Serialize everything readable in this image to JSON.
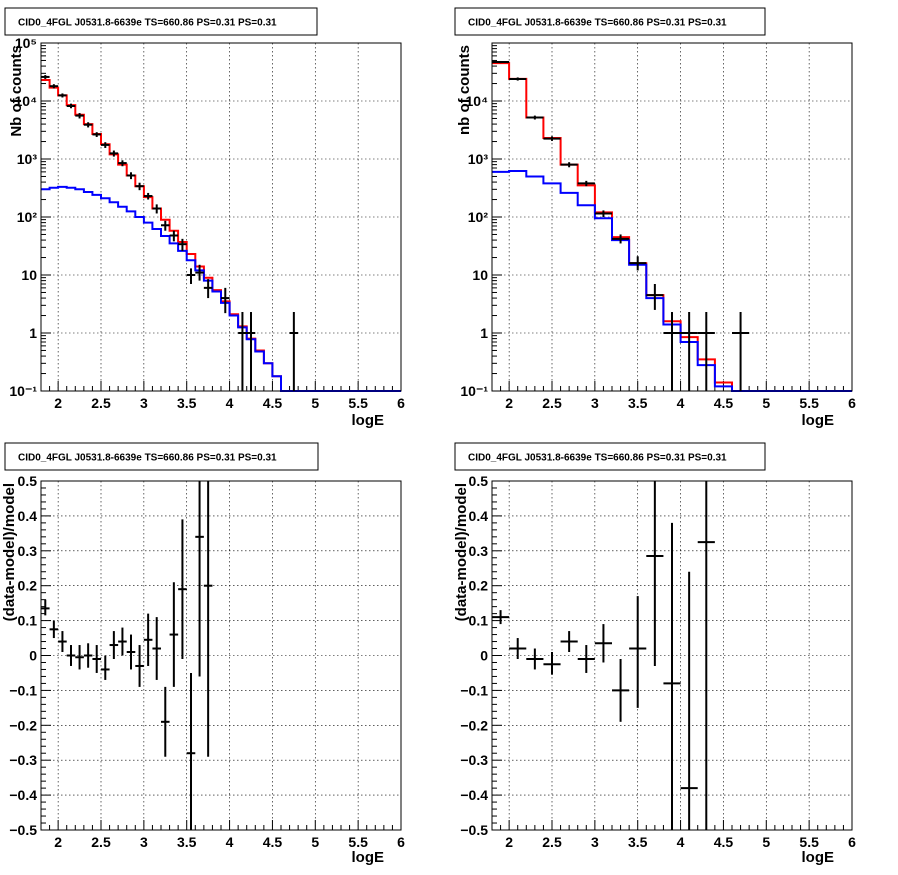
{
  "colors": {
    "data": "#000000",
    "total_model": "#ff0000",
    "component": "#0000ff"
  },
  "chart_data": [
    {
      "id": "counts-left",
      "type": "histogram-logy",
      "title": "CID0_4FGL J0531.8-6639e TS=660.86 PS=0.31 PS=0.31",
      "xlabel": "logE",
      "ylabel": "Nb of counts",
      "xlim": [
        1.8,
        6.0
      ],
      "ylim": [
        0.1,
        100000
      ],
      "log_y": true,
      "grid": true,
      "xticks": [
        2,
        2.5,
        3,
        3.5,
        4,
        4.5,
        5,
        5.5,
        6
      ],
      "xtick_labels": [
        "2",
        "2.5",
        "3",
        "3.5",
        "4",
        "4.5",
        "5",
        "5.5",
        "6"
      ],
      "yticks": [
        0.1,
        1,
        10,
        100,
        1000,
        10000,
        100000
      ],
      "ytick_labels": [
        "10⁻¹",
        "1",
        "10",
        "10²",
        "10³",
        "10⁴",
        "10⁵"
      ],
      "bin_edges": [
        1.8,
        1.9,
        2.0,
        2.1,
        2.2,
        2.3,
        2.4,
        2.5,
        2.6,
        2.7,
        2.8,
        2.9,
        3.0,
        3.1,
        3.2,
        3.3,
        3.4,
        3.5,
        3.6,
        3.7,
        3.8,
        3.9,
        4.0,
        4.1,
        4.2,
        4.3,
        4.4,
        4.5,
        4.6,
        4.7,
        4.8,
        4.9,
        5.0,
        5.1,
        5.2,
        5.3,
        5.4,
        5.5,
        5.6,
        5.7,
        5.8,
        5.9,
        6.0
      ],
      "series": [
        {
          "role": "total_model",
          "values": [
            23000,
            17000,
            12500,
            8500,
            5800,
            4000,
            2700,
            1800,
            1200,
            800,
            520,
            340,
            220,
            140,
            90,
            58,
            37,
            23,
            14,
            9,
            5.5,
            3.5,
            2.1,
            1.3,
            0.8,
            0.5,
            0.3,
            0.18,
            0.1,
            0.1,
            0.1,
            0.1,
            0.1,
            0.1,
            0.1,
            0.1,
            0.1,
            0.1,
            0.1,
            0.1,
            0.1,
            0.1
          ]
        },
        {
          "role": "component",
          "values": [
            300,
            320,
            330,
            320,
            300,
            270,
            240,
            210,
            180,
            150,
            125,
            100,
            80,
            62,
            47,
            35,
            26,
            18,
            12,
            8,
            5.2,
            3.3,
            2.0,
            1.25,
            0.78,
            0.48,
            0.3,
            0.18,
            0.1,
            0.1,
            0.1,
            0.1,
            0.1,
            0.1,
            0.1,
            0.1,
            0.1,
            0.1,
            0.1,
            0.1,
            0.1,
            0.1
          ]
        },
        {
          "role": "data",
          "points": [
            {
              "x": 1.85,
              "y": 26000,
              "lo": 24000,
              "hi": 28000
            },
            {
              "x": 1.95,
              "y": 18000,
              "lo": 16500,
              "hi": 19500
            },
            {
              "x": 2.05,
              "y": 12500,
              "lo": 11500,
              "hi": 13500
            },
            {
              "x": 2.15,
              "y": 8200,
              "lo": 7500,
              "hi": 9000
            },
            {
              "x": 2.25,
              "y": 5600,
              "lo": 5000,
              "hi": 6200
            },
            {
              "x": 2.35,
              "y": 3900,
              "lo": 3500,
              "hi": 4300
            },
            {
              "x": 2.45,
              "y": 2650,
              "lo": 2400,
              "hi": 2900
            },
            {
              "x": 2.55,
              "y": 1750,
              "lo": 1550,
              "hi": 1950
            },
            {
              "x": 2.65,
              "y": 1250,
              "lo": 1100,
              "hi": 1400
            },
            {
              "x": 2.75,
              "y": 850,
              "lo": 750,
              "hi": 950
            },
            {
              "x": 2.85,
              "y": 520,
              "lo": 450,
              "hi": 590
            },
            {
              "x": 2.95,
              "y": 340,
              "lo": 290,
              "hi": 390
            },
            {
              "x": 3.05,
              "y": 230,
              "lo": 200,
              "hi": 260
            },
            {
              "x": 3.15,
              "y": 140,
              "lo": 115,
              "hi": 165
            },
            {
              "x": 3.25,
              "y": 72,
              "lo": 58,
              "hi": 86
            },
            {
              "x": 3.35,
              "y": 48,
              "lo": 38,
              "hi": 58
            },
            {
              "x": 3.45,
              "y": 34,
              "lo": 26,
              "hi": 42
            },
            {
              "x": 3.55,
              "y": 10,
              "lo": 7,
              "hi": 13
            },
            {
              "x": 3.65,
              "y": 11,
              "lo": 8,
              "hi": 15
            },
            {
              "x": 3.75,
              "y": 6,
              "lo": 4,
              "hi": 8.5
            },
            {
              "x": 3.95,
              "y": 4,
              "lo": 2.2,
              "hi": 6
            },
            {
              "x": 4.15,
              "y": 1,
              "lo": 0.1,
              "hi": 2.3
            },
            {
              "x": 4.25,
              "y": 1,
              "lo": 0.1,
              "hi": 2.3
            },
            {
              "x": 4.75,
              "y": 1,
              "lo": 0.1,
              "hi": 2.3
            }
          ]
        }
      ]
    },
    {
      "id": "counts-right",
      "type": "histogram-logy",
      "title": "CID0_4FGL J0531.8-6639e TS=660.86 PS=0.31 PS=0.31",
      "xlabel": "logE",
      "ylabel": "nb of counts",
      "xlim": [
        1.8,
        6.0
      ],
      "ylim": [
        0.1,
        100000
      ],
      "log_y": true,
      "grid": true,
      "xticks": [
        2,
        2.5,
        3,
        3.5,
        4,
        4.5,
        5,
        5.5,
        6
      ],
      "xtick_labels": [
        "2",
        "2.5",
        "3",
        "3.5",
        "4",
        "4.5",
        "5",
        "5.5",
        "6"
      ],
      "yticks": [
        0.1,
        1,
        10,
        100,
        1000,
        10000
      ],
      "ytick_labels": [
        "10⁻¹",
        "1",
        "10",
        "10²",
        "10³",
        "10⁴"
      ],
      "bin_edges": [
        1.8,
        2.0,
        2.2,
        2.4,
        2.6,
        2.8,
        3.0,
        3.2,
        3.4,
        3.6,
        3.8,
        4.0,
        4.2,
        4.4,
        4.6,
        4.8,
        5.0,
        5.2,
        5.4,
        5.6,
        5.8,
        6.0
      ],
      "series": [
        {
          "role": "total_model",
          "values": [
            45000,
            24000,
            5200,
            2300,
            800,
            350,
            120,
            45,
            16,
            4.5,
            1.6,
            0.85,
            0.35,
            0.14,
            0.1,
            0.1,
            0.1,
            0.1,
            0.1,
            0.1,
            0.1
          ]
        },
        {
          "role": "component",
          "values": [
            600,
            620,
            500,
            380,
            260,
            160,
            95,
            40,
            15,
            4,
            1.4,
            0.7,
            0.28,
            0.12,
            0.1,
            0.1,
            0.1,
            0.1,
            0.1,
            0.1,
            0.1
          ]
        },
        {
          "role": "data",
          "points": [
            {
              "x": 1.9,
              "y": 47000,
              "lo": 45000,
              "hi": 49000
            },
            {
              "x": 2.1,
              "y": 24000,
              "lo": 22500,
              "hi": 25500
            },
            {
              "x": 2.3,
              "y": 5200,
              "lo": 4800,
              "hi": 5600
            },
            {
              "x": 2.5,
              "y": 2250,
              "lo": 2050,
              "hi": 2450
            },
            {
              "x": 2.7,
              "y": 800,
              "lo": 720,
              "hi": 880
            },
            {
              "x": 2.9,
              "y": 380,
              "lo": 340,
              "hi": 420
            },
            {
              "x": 3.1,
              "y": 115,
              "lo": 100,
              "hi": 130
            },
            {
              "x": 3.3,
              "y": 42,
              "lo": 35,
              "hi": 50
            },
            {
              "x": 3.5,
              "y": 16,
              "lo": 12,
              "hi": 21
            },
            {
              "x": 3.7,
              "y": 4.5,
              "lo": 2.5,
              "hi": 7
            },
            {
              "x": 3.9,
              "y": 1,
              "lo": 0.1,
              "hi": 2.3
            },
            {
              "x": 4.1,
              "y": 1,
              "lo": 0.1,
              "hi": 2.3
            },
            {
              "x": 4.3,
              "y": 1,
              "lo": 0.1,
              "hi": 2.3
            },
            {
              "x": 4.7,
              "y": 1,
              "lo": 0.1,
              "hi": 2.3
            }
          ]
        }
      ]
    },
    {
      "id": "residuals-left",
      "type": "scatter-errorbars",
      "title": "CID0_4FGL J0531.8-6639e TS=660.86 PS=0.31 PS=0.31",
      "xlabel": "logE",
      "ylabel": "(data-model)/model",
      "xlim": [
        1.8,
        6.0
      ],
      "ylim": [
        -0.5,
        0.5
      ],
      "log_y": false,
      "grid": true,
      "xticks": [
        2,
        2.5,
        3,
        3.5,
        4,
        4.5,
        5,
        5.5,
        6
      ],
      "xtick_labels": [
        "2",
        "2.5",
        "3",
        "3.5",
        "4",
        "4.5",
        "5",
        "5.5",
        "6"
      ],
      "yticks": [
        -0.5,
        -0.4,
        -0.3,
        -0.2,
        -0.1,
        0,
        0.1,
        0.2,
        0.3,
        0.4,
        0.5
      ],
      "ytick_labels": [
        "−0.5",
        "−0.4",
        "−0.3",
        "−0.2",
        "−0.1",
        "0",
        "0.1",
        "0.2",
        "0.3",
        "0.4",
        "0.5"
      ],
      "xerr": 0.05,
      "series": [
        {
          "role": "data",
          "points": [
            {
              "x": 1.85,
              "y": 0.135,
              "lo": 0.115,
              "hi": 0.16
            },
            {
              "x": 1.95,
              "y": 0.075,
              "lo": 0.05,
              "hi": 0.1
            },
            {
              "x": 2.05,
              "y": 0.04,
              "lo": 0.01,
              "hi": 0.07
            },
            {
              "x": 2.15,
              "y": 0.0,
              "lo": -0.03,
              "hi": 0.03
            },
            {
              "x": 2.25,
              "y": -0.005,
              "lo": -0.04,
              "hi": 0.03
            },
            {
              "x": 2.35,
              "y": 0.0,
              "lo": -0.035,
              "hi": 0.035
            },
            {
              "x": 2.45,
              "y": -0.01,
              "lo": -0.05,
              "hi": 0.03
            },
            {
              "x": 2.55,
              "y": -0.04,
              "lo": -0.07,
              "hi": 0.0
            },
            {
              "x": 2.65,
              "y": 0.03,
              "lo": -0.01,
              "hi": 0.07
            },
            {
              "x": 2.75,
              "y": 0.04,
              "lo": 0.0,
              "hi": 0.08
            },
            {
              "x": 2.85,
              "y": 0.01,
              "lo": -0.04,
              "hi": 0.06
            },
            {
              "x": 2.95,
              "y": -0.03,
              "lo": -0.09,
              "hi": 0.03
            },
            {
              "x": 3.05,
              "y": 0.045,
              "lo": -0.03,
              "hi": 0.12
            },
            {
              "x": 3.15,
              "y": 0.02,
              "lo": -0.07,
              "hi": 0.11
            },
            {
              "x": 3.25,
              "y": -0.19,
              "lo": -0.29,
              "hi": -0.09
            },
            {
              "x": 3.35,
              "y": 0.06,
              "lo": -0.09,
              "hi": 0.21
            },
            {
              "x": 3.45,
              "y": 0.19,
              "lo": -0.01,
              "hi": 0.39
            },
            {
              "x": 3.55,
              "y": -0.28,
              "lo": -0.5,
              "hi": -0.05
            },
            {
              "x": 3.65,
              "y": 0.34,
              "lo": -0.06,
              "hi": 0.5
            },
            {
              "x": 3.75,
              "y": 0.2,
              "lo": -0.29,
              "hi": 0.5
            }
          ]
        }
      ]
    },
    {
      "id": "residuals-right",
      "type": "scatter-errorbars",
      "title": "CID0_4FGL J0531.8-6639e TS=660.86 PS=0.31 PS=0.31",
      "xlabel": "logE",
      "ylabel": "(data-model)/model",
      "xlim": [
        1.8,
        6.0
      ],
      "ylim": [
        -0.5,
        0.5
      ],
      "log_y": false,
      "grid": true,
      "xticks": [
        2,
        2.5,
        3,
        3.5,
        4,
        4.5,
        5,
        5.5,
        6
      ],
      "xtick_labels": [
        "2",
        "2.5",
        "3",
        "3.5",
        "4",
        "4.5",
        "5",
        "5.5",
        "6"
      ],
      "yticks": [
        -0.5,
        -0.4,
        -0.3,
        -0.2,
        -0.1,
        0,
        0.1,
        0.2,
        0.3,
        0.4,
        0.5
      ],
      "ytick_labels": [
        "−0.5",
        "−0.4",
        "−0.3",
        "−0.2",
        "−0.1",
        "0",
        "0.1",
        "0.2",
        "0.3",
        "0.4",
        "0.5"
      ],
      "xerr": 0.1,
      "series": [
        {
          "role": "data",
          "points": [
            {
              "x": 1.9,
              "y": 0.11,
              "lo": 0.09,
              "hi": 0.13
            },
            {
              "x": 2.1,
              "y": 0.02,
              "lo": -0.01,
              "hi": 0.05
            },
            {
              "x": 2.3,
              "y": -0.01,
              "lo": -0.04,
              "hi": 0.02
            },
            {
              "x": 2.5,
              "y": -0.025,
              "lo": -0.055,
              "hi": 0.01
            },
            {
              "x": 2.7,
              "y": 0.04,
              "lo": 0.01,
              "hi": 0.07
            },
            {
              "x": 2.9,
              "y": -0.01,
              "lo": -0.05,
              "hi": 0.03
            },
            {
              "x": 3.1,
              "y": 0.035,
              "lo": -0.02,
              "hi": 0.09
            },
            {
              "x": 3.3,
              "y": -0.1,
              "lo": -0.19,
              "hi": -0.01
            },
            {
              "x": 3.5,
              "y": 0.02,
              "lo": -0.15,
              "hi": 0.17
            },
            {
              "x": 3.7,
              "y": 0.285,
              "lo": -0.03,
              "hi": 0.5
            },
            {
              "x": 3.9,
              "y": -0.08,
              "lo": -0.5,
              "hi": 0.38
            },
            {
              "x": 4.1,
              "y": -0.38,
              "lo": -0.5,
              "hi": 0.24
            },
            {
              "x": 4.3,
              "y": 0.325,
              "lo": -0.5,
              "hi": 0.5
            }
          ]
        }
      ]
    }
  ]
}
